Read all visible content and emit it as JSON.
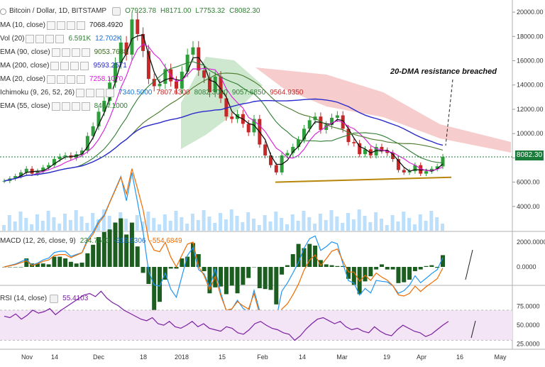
{
  "header": {
    "symbol": "Bitcoin / Dollar, 1D, BITSTAMP",
    "o": "O7923.78",
    "h": "H8171.00",
    "l": "L7753.32",
    "c": "C8082.30"
  },
  "legend": [
    {
      "name": "MA (10, close)",
      "values": [
        {
          "text": "7068.4920",
          "color": "#222222"
        }
      ]
    },
    {
      "name": "Vol (20)",
      "values": [
        {
          "text": "6.591K",
          "color": "#2e7d32"
        },
        {
          "text": "12.702K",
          "color": "#1e6bd6"
        }
      ]
    },
    {
      "name": "EMA (90, close)",
      "values": [
        {
          "text": "9053.7688",
          "color": "#3a6b1e"
        }
      ]
    },
    {
      "name": "MA (200, close)",
      "values": [
        {
          "text": "9593.2571",
          "color": "#2a2acc"
        }
      ]
    },
    {
      "name": "MA (20, close)",
      "values": [
        {
          "text": "7258.1070",
          "color": "#d81bd8"
        }
      ]
    },
    {
      "name": "Ichimoku (9, 26, 52, 26)",
      "values": [
        {
          "text": "7340.5000",
          "color": "#1976d2"
        },
        {
          "text": "7807.6300",
          "color": "#c62828"
        },
        {
          "text": "8082.3000",
          "color": "#2e7d32"
        },
        {
          "text": "9057.6850",
          "color": "#2e7d32"
        },
        {
          "text": "9564.9350",
          "color": "#c62828"
        }
      ]
    },
    {
      "name": "EMA (55, close)",
      "values": [
        {
          "text": "8464.1000",
          "color": "#2e7d32"
        }
      ]
    }
  ],
  "annotation": "20-DMA resistance breached",
  "last_price_label": "8082.30",
  "colors": {
    "up": "#2e9e3a",
    "down": "#c62828",
    "ma10": "#111111",
    "ma20": "#d81bd8",
    "ema55": "#2e7d32",
    "ema90": "#4a7a2a",
    "ma200": "#2a2acc",
    "support": "#b8860b",
    "macd": "#2196f3",
    "signal": "#ef6c00",
    "rsi": "#7b1fa2",
    "rsi_band": "#f3e5f5"
  },
  "macd": {
    "label": "MACD (12, 26, close, 9)",
    "values": [
      {
        "text": "234.7543",
        "color": "#2e7d32"
      },
      {
        "text": "-319.9306",
        "color": "#1976d2"
      },
      {
        "text": "-554.6849",
        "color": "#ef6c00"
      }
    ],
    "axis": [
      "2000.0000",
      "0.0000"
    ]
  },
  "rsi": {
    "label": "RSI (14, close)",
    "value": "55.4103",
    "axis": [
      "75.0000",
      "50.0000",
      "25.0000"
    ]
  },
  "chart_data": {
    "type": "line",
    "title": "Bitcoin / Dollar, 1D, BITSTAMP",
    "price_axis": {
      "ticks": [
        "20000.00",
        "18000.00",
        "16000.00",
        "14000.00",
        "12000.00",
        "10000.00",
        "8000.00",
        "6000.00",
        "4000.00"
      ],
      "ylim": [
        2000,
        21000
      ]
    },
    "time_axis": [
      "Nov",
      "14",
      "Dec",
      "18",
      "2018",
      "15",
      "Feb",
      "14",
      "Mar",
      "19",
      "Apr",
      "16",
      "May"
    ],
    "series": [
      {
        "name": "Close",
        "values": [
          6100,
          6300,
          6500,
          6800,
          7100,
          6700,
          6900,
          7200,
          7400,
          7900,
          8100,
          8200,
          8000,
          8300,
          8600,
          9800,
          10600,
          11800,
          12700,
          14200,
          15800,
          17500,
          16500,
          19400,
          18200,
          16800,
          14500,
          13900,
          14100,
          15300,
          14300,
          13700,
          15100,
          16500,
          17100,
          15200,
          14600,
          13400,
          14700,
          12900,
          11400,
          11200,
          11600,
          10800,
          10100,
          11200,
          9100,
          8200,
          7400,
          6800,
          8200,
          8400,
          8900,
          9500,
          10400,
          11100,
          11400,
          10300,
          10700,
          11300,
          11500,
          10400,
          9300,
          9200,
          8300,
          8700,
          8200,
          8900,
          8600,
          8400,
          7900,
          7000,
          6800,
          6900,
          7400,
          6700,
          6900,
          7100,
          7300,
          8082
        ]
      }
    ],
    "support_line": {
      "from": [
        "Feb",
        6000
      ],
      "to": [
        "Apr 16",
        6400
      ]
    },
    "macd_axis": {
      "ticks": [
        "2000.0000",
        "0.0000"
      ]
    },
    "rsi_axis": {
      "ticks": [
        "75.0000",
        "50.0000",
        "25.0000"
      ],
      "ylim": [
        20,
        100
      ]
    },
    "rsi_values": [
      62,
      60,
      65,
      58,
      63,
      70,
      66,
      68,
      72,
      64,
      70,
      75,
      80,
      85,
      90,
      92,
      88,
      95,
      86,
      80,
      76,
      70,
      66,
      62,
      58,
      56,
      60,
      52,
      50,
      55,
      48,
      46,
      50,
      55,
      48,
      52,
      46,
      44,
      42,
      48,
      46,
      40,
      38,
      44,
      52,
      55,
      50,
      46,
      44,
      40,
      38,
      30,
      36,
      45,
      52,
      58,
      60,
      56,
      52,
      55,
      48,
      44,
      46,
      42,
      40,
      48,
      42,
      38,
      36,
      44,
      50,
      46,
      42,
      40,
      35,
      38,
      44,
      50,
      55
    ]
  }
}
